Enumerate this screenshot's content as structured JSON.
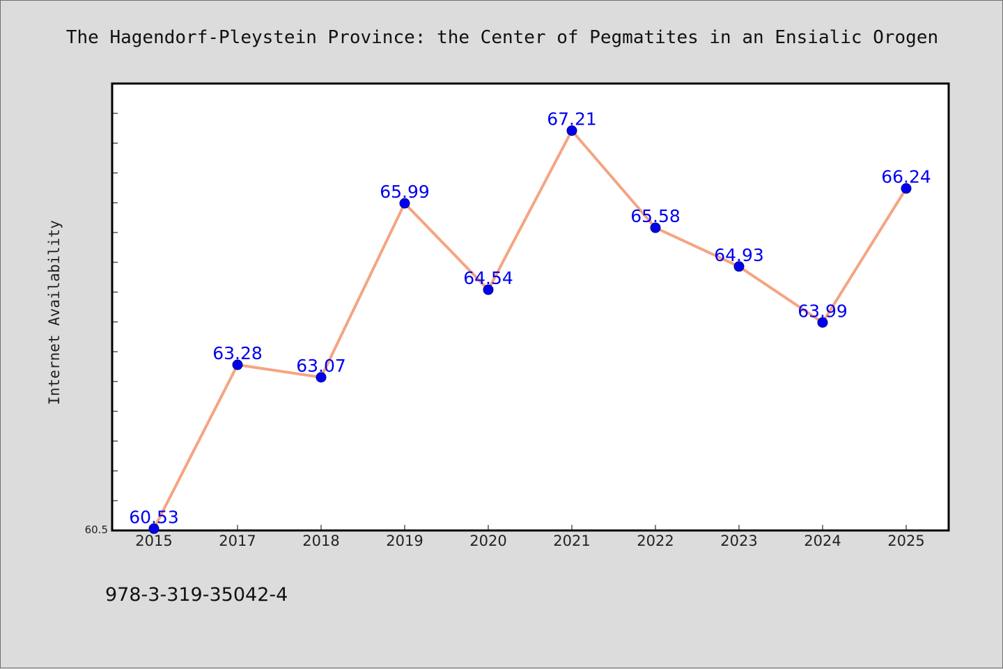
{
  "chart_data": {
    "type": "line",
    "title": "The Hagendorf-Pleystein Province: the Center of Pegmatites in an Ensialic Orogen",
    "xlabel": "",
    "ylabel": "Internet Availability",
    "categories": [
      "2015",
      "2017",
      "2018",
      "2019",
      "2020",
      "2021",
      "2022",
      "2023",
      "2024",
      "2025"
    ],
    "series": [
      {
        "values": [
          60.53,
          63.28,
          63.07,
          65.99,
          64.54,
          67.21,
          65.58,
          64.93,
          63.99,
          66.24
        ]
      }
    ],
    "data_labels": [
      "60.53",
      "63.28",
      "63.07",
      "65.99",
      "64.54",
      "67.21",
      "65.58",
      "64.93",
      "63.99",
      "66.24"
    ],
    "ylim": [
      60.5,
      68.0
    ],
    "y_tick_label": "60.5",
    "grid": false,
    "legend": "none",
    "colors": {
      "line": "#f4a582",
      "marker": "#0000ee",
      "label": "#0000ee",
      "background": "#dcdcdc",
      "plot_background": "#ffffff"
    }
  },
  "footer": {
    "isbn": "978-3-319-35042-4"
  }
}
